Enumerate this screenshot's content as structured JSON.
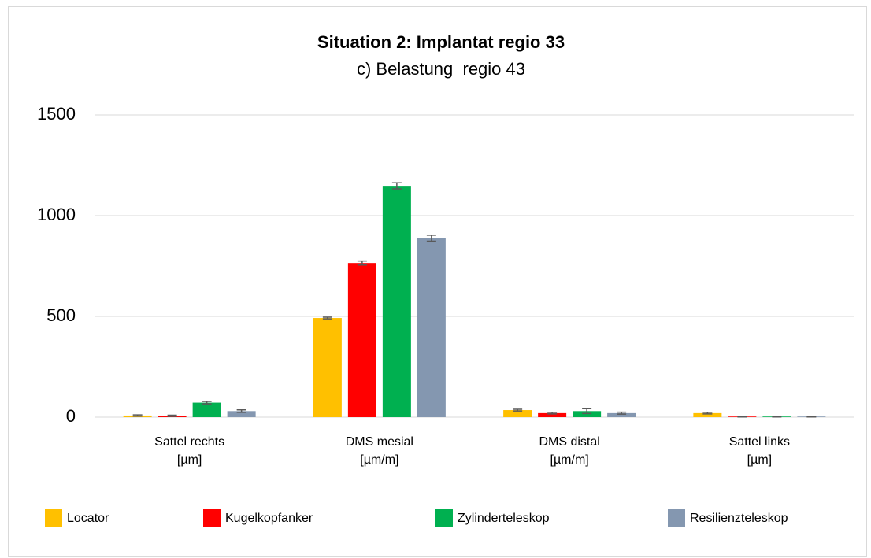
{
  "chart_data": {
    "type": "bar",
    "title": "Situation 2: Implantat regio 33",
    "subtitle": "c) Belastung  regio 43",
    "categories": [
      [
        "Sattel rechts",
        "[µm]"
      ],
      [
        "DMS mesial",
        "[µm/m]"
      ],
      [
        "DMS distal",
        "[µm/m]"
      ],
      [
        "Sattel links",
        "[µm]"
      ]
    ],
    "series": [
      {
        "name": "Locator",
        "color": "#FFC000",
        "values": [
          8,
          492,
          35,
          20
        ],
        "errors": [
          3,
          4,
          4,
          4
        ]
      },
      {
        "name": "Kugelkopfanker",
        "color": "#FF0000",
        "values": [
          7,
          765,
          20,
          3
        ],
        "errors": [
          3,
          10,
          4,
          2
        ]
      },
      {
        "name": "Zylinderteleskop",
        "color": "#00B050",
        "values": [
          72,
          1148,
          30,
          3
        ],
        "errors": [
          6,
          15,
          12,
          2
        ]
      },
      {
        "name": "Resilienzteleskop",
        "color": "#8497B0",
        "values": [
          30,
          888,
          20,
          3
        ],
        "errors": [
          6,
          15,
          5,
          2
        ]
      }
    ],
    "ylim": [
      0,
      1500
    ],
    "yticks": [
      0,
      500,
      1000,
      1500
    ],
    "grid": true,
    "legend": "bottom"
  }
}
